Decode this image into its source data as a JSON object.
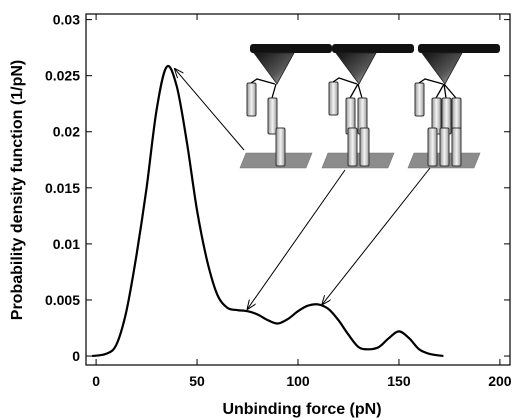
{
  "chart_data": {
    "type": "line",
    "title": "",
    "xlabel": "Unbinding force (pN)",
    "ylabel": "Probability density function (1/pN)",
    "xlim": [
      -5,
      205
    ],
    "ylim": [
      -0.0008,
      0.0305
    ],
    "xticks": [
      0,
      50,
      100,
      150,
      200
    ],
    "xtick_labels": [
      "0",
      "50",
      "100",
      "150",
      "200"
    ],
    "yticks": [
      0,
      0.005,
      0.01,
      0.015,
      0.02,
      0.025,
      0.03
    ],
    "ytick_labels": [
      "0",
      "0.005",
      "0.01",
      "0.015",
      "0.02",
      "0.025",
      "0.03"
    ],
    "grid": false,
    "legend": "none",
    "series": [
      {
        "x": [
          -2,
          5,
          10,
          15,
          20,
          25,
          30,
          35,
          40,
          45,
          50,
          55,
          60,
          65,
          70,
          75,
          80,
          85,
          90,
          95,
          100,
          105,
          110,
          115,
          120,
          125,
          130,
          135,
          140,
          145,
          150,
          155,
          160,
          165,
          172
        ],
        "y": [
          0,
          0.0002,
          0.001,
          0.004,
          0.009,
          0.015,
          0.022,
          0.0258,
          0.024,
          0.019,
          0.013,
          0.0085,
          0.0055,
          0.0043,
          0.0041,
          0.004,
          0.0037,
          0.0032,
          0.0029,
          0.0033,
          0.004,
          0.0045,
          0.0046,
          0.0042,
          0.0032,
          0.0019,
          0.0008,
          0.0006,
          0.0008,
          0.0016,
          0.0022,
          0.0016,
          0.0006,
          0.0002,
          0
        ]
      }
    ],
    "annotations": [
      {
        "type": "arrow",
        "from_image": 0,
        "to": [
          39,
          0.0256
        ]
      },
      {
        "type": "arrow",
        "from_image": 1,
        "to": [
          75,
          0.0042
        ]
      },
      {
        "type": "arrow",
        "from_image": 2,
        "to": [
          112,
          0.0046
        ]
      }
    ],
    "inset_images": [
      {
        "description": "single bond",
        "tip_chains": 1,
        "surface_chains": 1
      },
      {
        "description": "double bond",
        "tip_chains": 2,
        "surface_chains": 2
      },
      {
        "description": "triple bond",
        "tip_chains": 3,
        "surface_chains": 3
      }
    ],
    "colors": {
      "curve": "#000000",
      "inset_bar": "#111111",
      "surface": "#888888"
    }
  }
}
